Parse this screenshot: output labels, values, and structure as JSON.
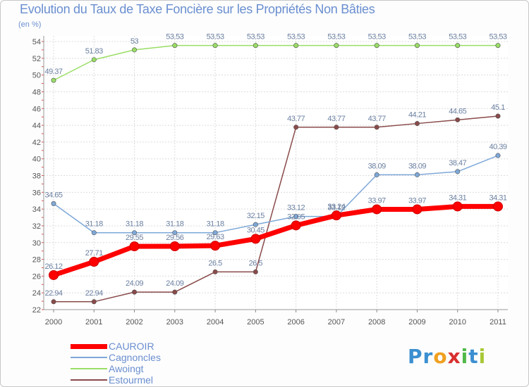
{
  "chart_data": {
    "type": "line",
    "title": "Evolution du Taux de Taxe Foncière sur les Propriétés Non Bâties",
    "subtitle": "(en %)",
    "xlabel": "",
    "ylabel": "",
    "categories": [
      "2000",
      "2001",
      "2002",
      "2003",
      "2004",
      "2005",
      "2006",
      "2007",
      "2008",
      "2009",
      "2010",
      "2011"
    ],
    "ylim": [
      22,
      54
    ],
    "yticks": [
      22,
      24,
      26,
      28,
      30,
      32,
      34,
      36,
      38,
      40,
      42,
      44,
      46,
      48,
      50,
      52,
      54
    ],
    "grid": true,
    "legend_position": "bottom-left",
    "series": [
      {
        "name": "CAUROIR",
        "color": "#ff0000",
        "values": [
          26.12,
          27.71,
          29.55,
          29.56,
          29.63,
          30.45,
          32.05,
          33.24,
          33.97,
          33.97,
          34.31,
          34.31
        ],
        "labels": [
          "26.12",
          "27.71",
          "29.55",
          "29.56",
          "29.63",
          "30.45",
          "32.05",
          "33.24",
          "33.97",
          "33.97",
          "34.31",
          "34.31"
        ]
      },
      {
        "name": "Cagnoncles",
        "color": "#7ea8d8",
        "values": [
          34.65,
          31.18,
          31.18,
          31.18,
          31.18,
          32.15,
          33.12,
          33.12,
          38.09,
          38.09,
          38.47,
          40.39
        ],
        "labels": [
          "34.65",
          "31.18",
          "31.18",
          "31.18",
          "31.18",
          "32.15",
          "33.12",
          "33.12",
          "38.09",
          "38.09",
          "38.47",
          "40.39"
        ]
      },
      {
        "name": "Awoingt",
        "color": "#99dd66",
        "values": [
          49.37,
          51.83,
          53,
          53.53,
          53.53,
          53.53,
          53.53,
          53.53,
          53.53,
          53.53,
          53.53,
          53.53
        ],
        "labels": [
          "49.37",
          "51.83",
          "53",
          "53.53",
          "53.53",
          "53.53",
          "53.53",
          "53.53",
          "53.53",
          "53.53",
          "53.53",
          "53.53"
        ]
      },
      {
        "name": "Estourmel",
        "color": "#8a4a4a",
        "values": [
          22.94,
          22.94,
          24.09,
          24.09,
          26.5,
          26.5,
          43.77,
          43.77,
          43.77,
          44.21,
          44.65,
          45.1
        ],
        "labels": [
          "22.94",
          "22.94",
          "24.09",
          "24.09",
          "26.5",
          "26.5",
          "43.77",
          "43.77",
          "43.77",
          "44.21",
          "44.65",
          "45.1"
        ]
      }
    ]
  },
  "logo": {
    "letters": [
      "P",
      "r",
      "o",
      "x",
      "i",
      "t",
      "i"
    ],
    "colors": [
      "#3b8fd0",
      "#3b8fd0",
      "#f0a020",
      "#d83030",
      "#50b848",
      "#3b8fd0",
      "#a8c838"
    ]
  }
}
